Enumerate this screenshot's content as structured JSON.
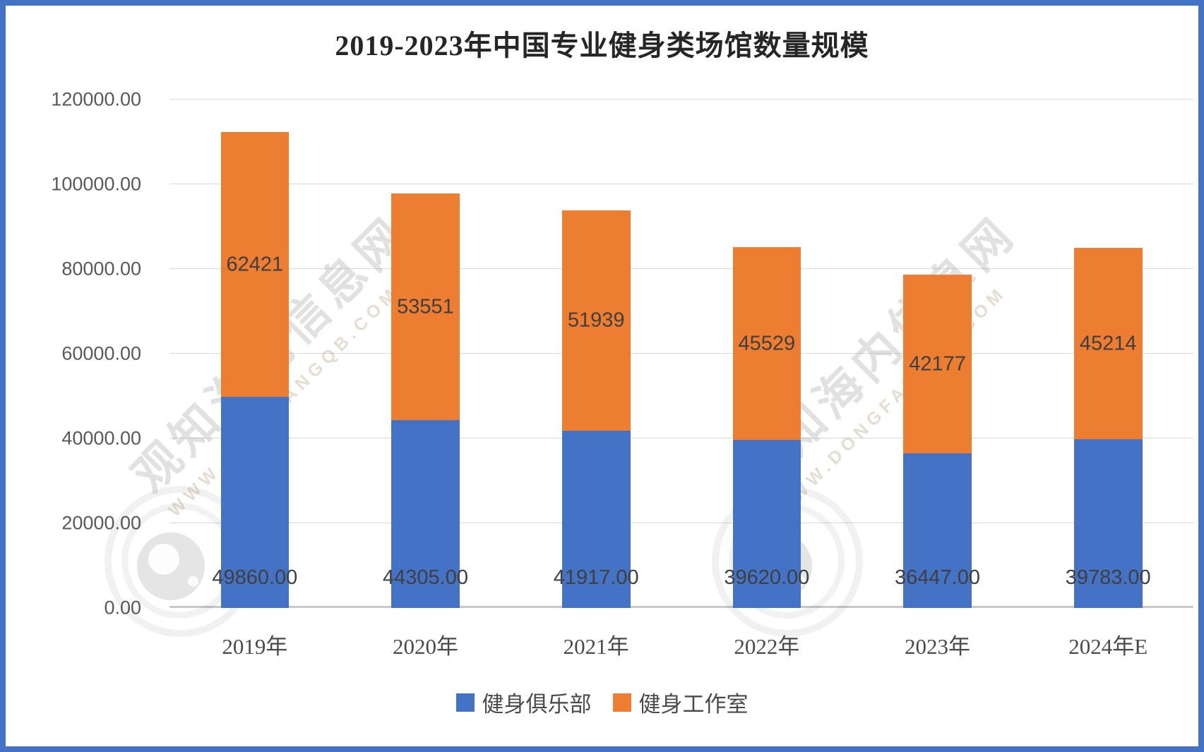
{
  "frame": {
    "border_color": "#4472C4",
    "background": "#ffffff"
  },
  "chart_data": {
    "type": "bar",
    "stacked": true,
    "title": "2019-2023年中国专业健身类场馆数量规模",
    "categories": [
      "2019年",
      "2020年",
      "2021年",
      "2022年",
      "2023年",
      "2024年E"
    ],
    "series": [
      {
        "name": "健身俱乐部",
        "color": "#4472C4",
        "values": [
          49860,
          44305,
          41917,
          39620,
          36447,
          39783
        ],
        "data_labels": [
          "49860.00",
          "44305.00",
          "41917.00",
          "39620.00",
          "36447.00",
          "39783.00"
        ],
        "label_position": "inside-base"
      },
      {
        "name": "健身工作室",
        "color": "#ED7D31",
        "values": [
          62421,
          53551,
          51939,
          45529,
          42177,
          45214
        ],
        "data_labels": [
          "62421",
          "53551",
          "51939",
          "45529",
          "42177",
          "45214"
        ],
        "label_position": "inside-center"
      }
    ],
    "ylim": [
      0,
      120000
    ],
    "ytick_step": 20000,
    "ytick_labels": [
      "0.00",
      "20000.00",
      "40000.00",
      "60000.00",
      "80000.00",
      "100000.00",
      "120000.00"
    ],
    "grid": true,
    "legend_position": "bottom",
    "gridline_color": "#D9D9D9",
    "axis_label_color": "#595959",
    "data_label_color": "#3F3F3F"
  },
  "watermark": {
    "text_cn": "观知海内信息网",
    "text_url": "WWW.DONGFANGQB.COM"
  }
}
